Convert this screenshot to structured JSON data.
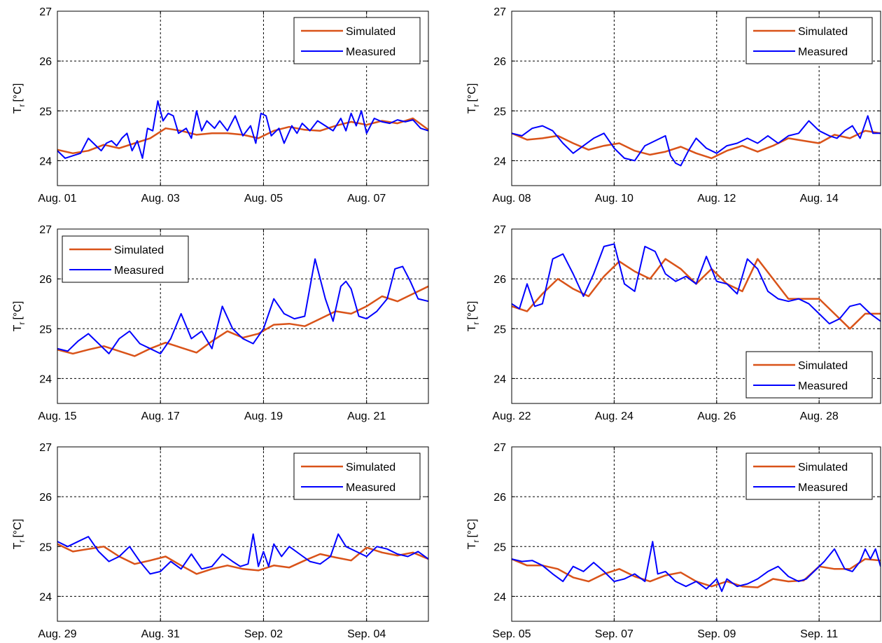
{
  "figure": {
    "colors": {
      "simulated": "#D95319",
      "measured": "#0000FF"
    }
  },
  "chart_data": [
    {
      "type": "line",
      "ylabel": "T",
      "ylabel_subscript": "r",
      "ylabel_unit": "[°C]",
      "ylim": [
        23.5,
        27
      ],
      "yticks": [
        24,
        25,
        26,
        27
      ],
      "xlim": [
        0,
        7.2
      ],
      "xticks": [
        0,
        2,
        4,
        6
      ],
      "xtick_labels": [
        "Aug. 01",
        "Aug. 03",
        "Aug. 05",
        "Aug. 07"
      ],
      "grid": true,
      "legend_position": "top-right",
      "series": [
        {
          "name": "Simulated",
          "color": "#D95319",
          "x": [
            0,
            0.3,
            0.6,
            0.9,
            1.2,
            1.5,
            1.8,
            2.1,
            2.4,
            2.7,
            3.0,
            3.3,
            3.6,
            3.9,
            4.2,
            4.5,
            4.8,
            5.1,
            5.4,
            5.7,
            6.0,
            6.3,
            6.6,
            6.9,
            7.2
          ],
          "y": [
            24.22,
            24.15,
            24.2,
            24.32,
            24.25,
            24.35,
            24.45,
            24.65,
            24.6,
            24.52,
            24.55,
            24.55,
            24.52,
            24.45,
            24.6,
            24.68,
            24.62,
            24.6,
            24.7,
            24.78,
            24.72,
            24.8,
            24.75,
            24.85,
            24.62
          ]
        },
        {
          "name": "Measured",
          "color": "#0000FF",
          "x": [
            0,
            0.15,
            0.3,
            0.45,
            0.6,
            0.75,
            0.85,
            0.95,
            1.05,
            1.15,
            1.25,
            1.35,
            1.45,
            1.55,
            1.65,
            1.75,
            1.85,
            1.95,
            2.05,
            2.15,
            2.25,
            2.35,
            2.5,
            2.6,
            2.7,
            2.8,
            2.9,
            3.05,
            3.15,
            3.3,
            3.45,
            3.6,
            3.75,
            3.85,
            3.95,
            4.05,
            4.15,
            4.3,
            4.4,
            4.55,
            4.65,
            4.75,
            4.9,
            5.05,
            5.2,
            5.35,
            5.5,
            5.6,
            5.7,
            5.8,
            5.9,
            6.0,
            6.15,
            6.3,
            6.45,
            6.6,
            6.75,
            6.9,
            7.05,
            7.2
          ],
          "y": [
            24.2,
            24.05,
            24.1,
            24.15,
            24.45,
            24.3,
            24.2,
            24.35,
            24.4,
            24.3,
            24.45,
            24.55,
            24.2,
            24.4,
            24.05,
            24.65,
            24.6,
            25.2,
            24.8,
            24.95,
            24.9,
            24.55,
            24.65,
            24.45,
            25.0,
            24.6,
            24.8,
            24.65,
            24.8,
            24.6,
            24.9,
            24.5,
            24.7,
            24.35,
            24.95,
            24.9,
            24.5,
            24.65,
            24.35,
            24.7,
            24.55,
            24.75,
            24.6,
            24.8,
            24.7,
            24.6,
            24.85,
            24.6,
            24.95,
            24.7,
            25.0,
            24.55,
            24.85,
            24.78,
            24.75,
            24.82,
            24.78,
            24.82,
            24.65,
            24.6
          ]
        }
      ]
    },
    {
      "type": "line",
      "ylabel": "T",
      "ylabel_subscript": "r",
      "ylabel_unit": "[°C]",
      "ylim": [
        23.5,
        27
      ],
      "yticks": [
        24,
        25,
        26,
        27
      ],
      "xlim": [
        0,
        7.2
      ],
      "xticks": [
        0,
        2,
        4,
        6
      ],
      "xtick_labels": [
        "Aug. 08",
        "Aug. 10",
        "Aug. 12",
        "Aug. 14"
      ],
      "grid": true,
      "legend_position": "top-right",
      "series": [
        {
          "name": "Simulated",
          "color": "#D95319",
          "x": [
            0,
            0.3,
            0.6,
            0.9,
            1.2,
            1.5,
            1.8,
            2.1,
            2.4,
            2.7,
            3.0,
            3.3,
            3.6,
            3.9,
            4.2,
            4.5,
            4.8,
            5.1,
            5.4,
            5.7,
            6.0,
            6.3,
            6.6,
            6.9,
            7.2
          ],
          "y": [
            24.55,
            24.42,
            24.45,
            24.5,
            24.35,
            24.22,
            24.3,
            24.35,
            24.2,
            24.12,
            24.18,
            24.28,
            24.15,
            24.05,
            24.2,
            24.3,
            24.18,
            24.3,
            24.45,
            24.4,
            24.35,
            24.52,
            24.45,
            24.6,
            24.55
          ]
        },
        {
          "name": "Measured",
          "color": "#0000FF",
          "x": [
            0,
            0.2,
            0.4,
            0.6,
            0.8,
            1.0,
            1.2,
            1.4,
            1.6,
            1.8,
            2.0,
            2.2,
            2.4,
            2.6,
            2.8,
            3.0,
            3.1,
            3.2,
            3.3,
            3.45,
            3.6,
            3.8,
            4.0,
            4.2,
            4.4,
            4.6,
            4.8,
            5.0,
            5.2,
            5.4,
            5.6,
            5.8,
            6.0,
            6.1,
            6.2,
            6.35,
            6.5,
            6.65,
            6.8,
            6.95,
            7.05,
            7.2
          ],
          "y": [
            24.55,
            24.5,
            24.65,
            24.7,
            24.6,
            24.35,
            24.15,
            24.3,
            24.45,
            24.55,
            24.25,
            24.05,
            24.0,
            24.3,
            24.4,
            24.5,
            24.1,
            23.95,
            23.9,
            24.2,
            24.45,
            24.25,
            24.15,
            24.3,
            24.35,
            24.45,
            24.35,
            24.5,
            24.35,
            24.5,
            24.55,
            24.8,
            24.6,
            24.55,
            24.5,
            24.45,
            24.6,
            24.7,
            24.45,
            24.9,
            24.55,
            24.55
          ]
        }
      ]
    },
    {
      "type": "line",
      "ylabel": "T",
      "ylabel_subscript": "r",
      "ylabel_unit": "[°C]",
      "ylim": [
        23.5,
        27
      ],
      "yticks": [
        24,
        25,
        26,
        27
      ],
      "xlim": [
        0,
        7.2
      ],
      "xticks": [
        0,
        2,
        4,
        6
      ],
      "xtick_labels": [
        "Aug. 15",
        "Aug. 17",
        "Aug. 19",
        "Aug. 21"
      ],
      "grid": true,
      "legend_position": "top-left",
      "series": [
        {
          "name": "Simulated",
          "color": "#D95319",
          "x": [
            0,
            0.3,
            0.6,
            0.9,
            1.2,
            1.5,
            1.8,
            2.1,
            2.4,
            2.7,
            3.0,
            3.3,
            3.6,
            3.9,
            4.2,
            4.5,
            4.8,
            5.1,
            5.4,
            5.7,
            6.0,
            6.3,
            6.6,
            6.9,
            7.2
          ],
          "y": [
            24.58,
            24.5,
            24.58,
            24.65,
            24.55,
            24.45,
            24.6,
            24.72,
            24.62,
            24.52,
            24.75,
            24.95,
            24.82,
            24.9,
            25.08,
            25.1,
            25.05,
            25.2,
            25.35,
            25.3,
            25.45,
            25.65,
            25.55,
            25.7,
            25.85
          ]
        },
        {
          "name": "Measured",
          "color": "#0000FF",
          "x": [
            0,
            0.2,
            0.4,
            0.6,
            0.8,
            1.0,
            1.2,
            1.4,
            1.6,
            1.8,
            2.0,
            2.2,
            2.4,
            2.6,
            2.8,
            3.0,
            3.2,
            3.4,
            3.6,
            3.8,
            4.0,
            4.2,
            4.4,
            4.6,
            4.8,
            5.0,
            5.2,
            5.35,
            5.5,
            5.6,
            5.7,
            5.85,
            6.0,
            6.2,
            6.4,
            6.55,
            6.7,
            6.85,
            7.0,
            7.2
          ],
          "y": [
            24.6,
            24.55,
            24.75,
            24.9,
            24.7,
            24.5,
            24.8,
            24.95,
            24.7,
            24.6,
            24.5,
            24.8,
            25.3,
            24.8,
            24.95,
            24.6,
            25.45,
            25.0,
            24.8,
            24.7,
            25.0,
            25.6,
            25.3,
            25.2,
            25.25,
            26.4,
            25.6,
            25.15,
            25.85,
            25.95,
            25.8,
            25.25,
            25.2,
            25.35,
            25.6,
            26.2,
            26.25,
            25.95,
            25.6,
            25.55
          ]
        }
      ]
    },
    {
      "type": "line",
      "ylabel": "T",
      "ylabel_subscript": "r",
      "ylabel_unit": "[°C]",
      "ylim": [
        23.5,
        27
      ],
      "yticks": [
        24,
        25,
        26,
        27
      ],
      "xlim": [
        0,
        7.2
      ],
      "xticks": [
        0,
        2,
        4,
        6
      ],
      "xtick_labels": [
        "Aug. 22",
        "Aug. 24",
        "Aug. 26",
        "Aug. 28"
      ],
      "grid": true,
      "legend_position": "bottom-right",
      "series": [
        {
          "name": "Simulated",
          "color": "#D95319",
          "x": [
            0,
            0.3,
            0.6,
            0.9,
            1.2,
            1.5,
            1.8,
            2.1,
            2.4,
            2.7,
            3.0,
            3.3,
            3.6,
            3.9,
            4.2,
            4.5,
            4.8,
            5.1,
            5.4,
            5.7,
            6.0,
            6.3,
            6.6,
            6.9,
            7.2
          ],
          "y": [
            25.45,
            25.35,
            25.7,
            26.0,
            25.8,
            25.65,
            26.05,
            26.35,
            26.15,
            26.0,
            26.4,
            26.2,
            25.9,
            26.2,
            25.9,
            25.75,
            26.4,
            26.0,
            25.6,
            25.6,
            25.6,
            25.3,
            25.0,
            25.3,
            25.3
          ]
        },
        {
          "name": "Measured",
          "color": "#0000FF",
          "x": [
            0,
            0.15,
            0.3,
            0.45,
            0.6,
            0.8,
            1.0,
            1.2,
            1.4,
            1.6,
            1.8,
            2.0,
            2.2,
            2.4,
            2.6,
            2.8,
            3.0,
            3.2,
            3.4,
            3.6,
            3.8,
            4.0,
            4.2,
            4.4,
            4.6,
            4.8,
            5.0,
            5.2,
            5.4,
            5.6,
            5.8,
            6.0,
            6.2,
            6.4,
            6.6,
            6.8,
            7.0,
            7.2
          ],
          "y": [
            25.5,
            25.4,
            25.9,
            25.45,
            25.5,
            26.4,
            26.5,
            26.1,
            25.65,
            26.1,
            26.65,
            26.7,
            25.9,
            25.75,
            26.65,
            26.55,
            26.1,
            25.95,
            26.05,
            25.9,
            26.45,
            25.95,
            25.9,
            25.7,
            26.4,
            26.2,
            25.75,
            25.6,
            25.55,
            25.6,
            25.5,
            25.3,
            25.1,
            25.2,
            25.45,
            25.5,
            25.3,
            25.15
          ]
        }
      ]
    },
    {
      "type": "line",
      "ylabel": "T",
      "ylabel_subscript": "r",
      "ylabel_unit": "[°C]",
      "ylim": [
        23.5,
        27
      ],
      "yticks": [
        24,
        25,
        26,
        27
      ],
      "xlim": [
        0,
        7.2
      ],
      "xticks": [
        0,
        2,
        4,
        6
      ],
      "xtick_labels": [
        "Aug. 29",
        "Aug. 31",
        "Sep. 02",
        "Sep. 04"
      ],
      "grid": true,
      "legend_position": "top-right",
      "series": [
        {
          "name": "Simulated",
          "color": "#D95319",
          "x": [
            0,
            0.3,
            0.6,
            0.9,
            1.2,
            1.5,
            1.8,
            2.1,
            2.4,
            2.7,
            3.0,
            3.3,
            3.6,
            3.9,
            4.2,
            4.5,
            4.8,
            5.1,
            5.4,
            5.7,
            6.0,
            6.3,
            6.6,
            6.9,
            7.2
          ],
          "y": [
            25.05,
            24.9,
            24.95,
            25.0,
            24.8,
            24.65,
            24.72,
            24.8,
            24.62,
            24.45,
            24.55,
            24.62,
            24.55,
            24.52,
            24.62,
            24.58,
            24.72,
            24.85,
            24.78,
            24.72,
            24.98,
            24.88,
            24.82,
            24.88,
            24.75
          ]
        },
        {
          "name": "Measured",
          "color": "#0000FF",
          "x": [
            0,
            0.2,
            0.4,
            0.6,
            0.8,
            1.0,
            1.2,
            1.4,
            1.6,
            1.8,
            2.0,
            2.2,
            2.4,
            2.6,
            2.8,
            3.0,
            3.2,
            3.4,
            3.55,
            3.7,
            3.8,
            3.9,
            4.0,
            4.1,
            4.2,
            4.35,
            4.5,
            4.7,
            4.9,
            5.1,
            5.3,
            5.45,
            5.6,
            5.8,
            6.0,
            6.2,
            6.4,
            6.6,
            6.8,
            7.0,
            7.2
          ],
          "y": [
            25.1,
            25.0,
            25.1,
            25.2,
            24.9,
            24.7,
            24.8,
            25.0,
            24.7,
            24.45,
            24.5,
            24.7,
            24.55,
            24.85,
            24.55,
            24.6,
            24.85,
            24.7,
            24.6,
            24.65,
            25.25,
            24.6,
            24.9,
            24.6,
            25.05,
            24.8,
            25.0,
            24.85,
            24.7,
            24.65,
            24.8,
            25.25,
            25.0,
            24.9,
            24.8,
            25.0,
            24.95,
            24.85,
            24.8,
            24.9,
            24.75
          ]
        }
      ]
    },
    {
      "type": "line",
      "ylabel": "T",
      "ylabel_subscript": "r",
      "ylabel_unit": "[°C]",
      "ylim": [
        23.5,
        27
      ],
      "yticks": [
        24,
        25,
        26,
        27
      ],
      "xlim": [
        0,
        7.2
      ],
      "xticks": [
        0,
        2,
        4,
        6
      ],
      "xtick_labels": [
        "Sep. 05",
        "Sep. 07",
        "Sep. 09",
        "Sep. 11"
      ],
      "grid": true,
      "legend_position": "top-right",
      "series": [
        {
          "name": "Simulated",
          "color": "#D95319",
          "x": [
            0,
            0.3,
            0.6,
            0.9,
            1.2,
            1.5,
            1.8,
            2.1,
            2.4,
            2.7,
            3.0,
            3.3,
            3.6,
            3.9,
            4.2,
            4.5,
            4.8,
            5.1,
            5.4,
            5.7,
            6.0,
            6.3,
            6.6,
            6.9,
            7.2
          ],
          "y": [
            24.75,
            24.62,
            24.62,
            24.55,
            24.38,
            24.3,
            24.45,
            24.55,
            24.4,
            24.3,
            24.42,
            24.48,
            24.3,
            24.2,
            24.3,
            24.2,
            24.18,
            24.35,
            24.3,
            24.32,
            24.6,
            24.55,
            24.55,
            24.75,
            24.72
          ]
        },
        {
          "name": "Measured",
          "color": "#0000FF",
          "x": [
            0,
            0.2,
            0.4,
            0.6,
            0.8,
            1.0,
            1.2,
            1.4,
            1.6,
            1.8,
            2.0,
            2.2,
            2.4,
            2.6,
            2.75,
            2.85,
            3.0,
            3.2,
            3.4,
            3.6,
            3.8,
            4.0,
            4.1,
            4.2,
            4.4,
            4.6,
            4.8,
            5.0,
            5.2,
            5.4,
            5.6,
            5.75,
            5.9,
            6.1,
            6.3,
            6.5,
            6.65,
            6.8,
            6.9,
            7.0,
            7.1,
            7.2
          ],
          "y": [
            24.75,
            24.7,
            24.72,
            24.62,
            24.45,
            24.3,
            24.6,
            24.5,
            24.68,
            24.5,
            24.3,
            24.35,
            24.45,
            24.3,
            25.1,
            24.45,
            24.5,
            24.3,
            24.2,
            24.3,
            24.15,
            24.35,
            24.1,
            24.35,
            24.2,
            24.25,
            24.35,
            24.5,
            24.6,
            24.4,
            24.3,
            24.35,
            24.5,
            24.7,
            24.95,
            24.55,
            24.5,
            24.7,
            24.95,
            24.75,
            24.95,
            24.6
          ]
        }
      ]
    }
  ]
}
